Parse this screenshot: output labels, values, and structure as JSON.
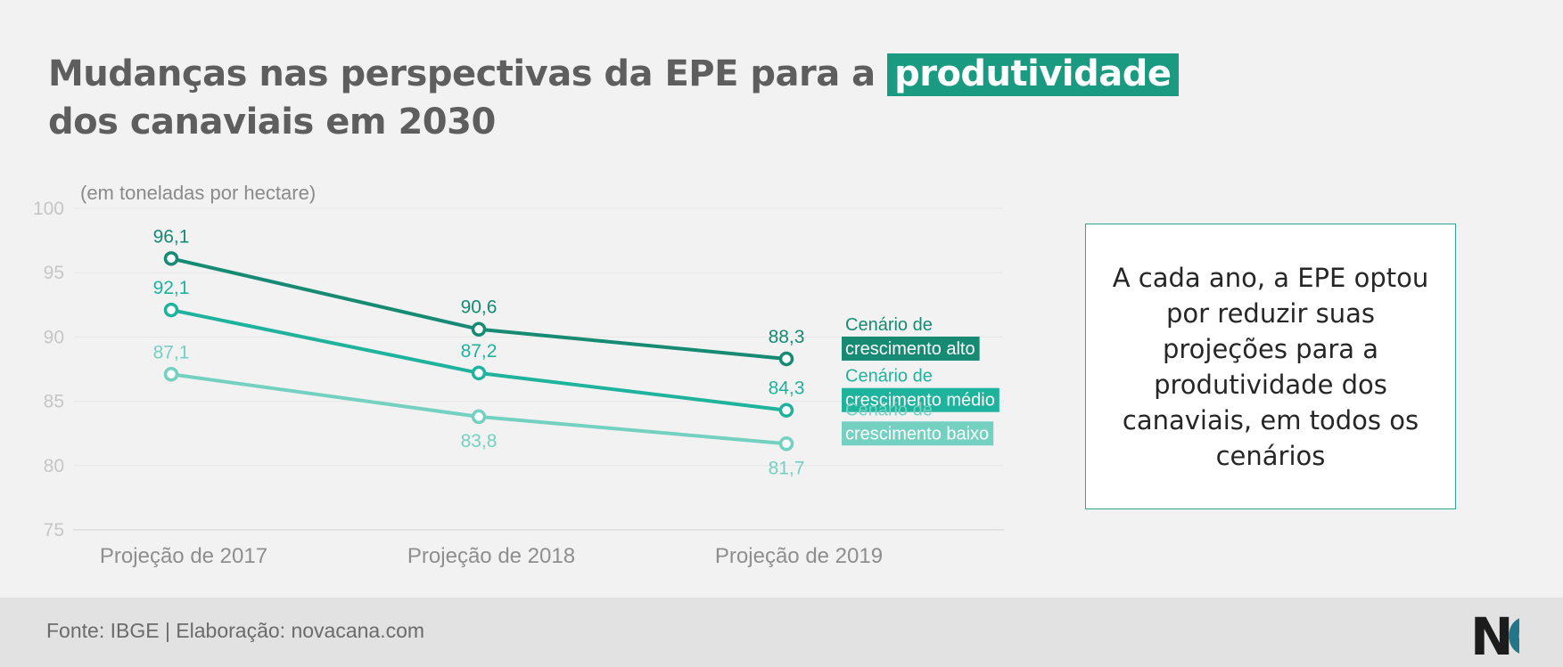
{
  "title": {
    "part1": "Mudanças nas perspectivas da EPE para a",
    "highlight": "produtividade",
    "part2": "dos canaviais em 2030"
  },
  "info_box": {
    "text": "A cada ano, a EPE optou por reduzir suas projeções para a produtividade dos canaviais, em todos os cenários"
  },
  "footer": {
    "source": "Fonte: IBGE | Elaboração: novacana.com",
    "logo_text": "NC"
  },
  "colors": {
    "alto": "#178a74",
    "medio": "#1fb39d",
    "baixo": "#74d1c2",
    "title_highlight": "#1a9a80"
  },
  "chart_data": {
    "type": "line",
    "subtitle": "(em toneladas por hectare)",
    "categories": [
      "Projeção de 2017",
      "Projeção de 2018",
      "Projeção de 2019"
    ],
    "ylim": [
      75,
      100
    ],
    "yticks": [
      100,
      95,
      90,
      85,
      80,
      75
    ],
    "grid": true,
    "legend": "right",
    "series": [
      {
        "name": "Cenário de crescimento alto",
        "name_line1": "Cenário de",
        "name_line2": "crescimento alto",
        "key": "alto",
        "values": [
          96.1,
          90.6,
          88.3
        ],
        "labels": [
          "96,1",
          "90,6",
          "88,3"
        ],
        "label_pos": [
          "above",
          "above",
          "above"
        ]
      },
      {
        "name": "Cenário de crescimento médio",
        "name_line1": "Cenário de",
        "name_line2": "crescimento médio",
        "key": "medio",
        "values": [
          92.1,
          87.2,
          84.3
        ],
        "labels": [
          "92,1",
          "87,2",
          "84,3"
        ],
        "label_pos": [
          "above",
          "above",
          "above"
        ]
      },
      {
        "name": "Cenário de crescimento baixo",
        "name_line1": "Cenário de",
        "name_line2": "crescimento baixo",
        "key": "baixo",
        "values": [
          87.1,
          83.8,
          81.7
        ],
        "labels": [
          "87,1",
          "83,8",
          "81,7"
        ],
        "label_pos": [
          "above",
          "below",
          "below"
        ]
      }
    ]
  }
}
